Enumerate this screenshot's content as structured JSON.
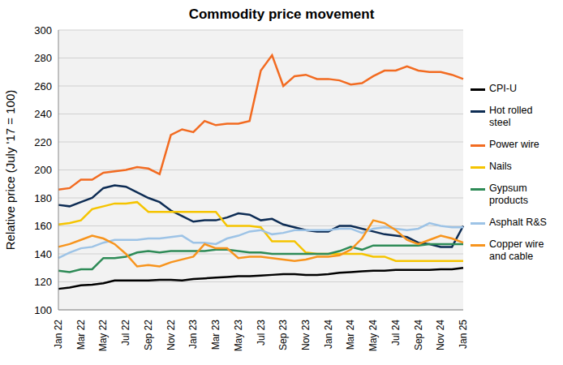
{
  "chart_data": {
    "type": "line",
    "title": "Commodity price movement",
    "y_label": "Relative price (July '17 = 100)",
    "categories": [
      "Jan 22",
      null,
      "Mar 22",
      null,
      "May 22",
      null,
      "Jul 22",
      null,
      "Sep 22",
      null,
      "Nov 22",
      null,
      "Jan 23",
      null,
      "Mar 23",
      null,
      "May 23",
      null,
      "Jul 23",
      null,
      "Sep 23",
      null,
      "Nov 23",
      null,
      "Jan 24",
      null,
      "Mar 24",
      null,
      "May 24",
      null,
      "Jul 24",
      null,
      "Sep 24",
      null,
      "Nov 24",
      null,
      "Jan 25"
    ],
    "ylim": [
      100,
      300
    ],
    "yticks": [
      100,
      120,
      140,
      160,
      180,
      200,
      220,
      240,
      260,
      280,
      300
    ],
    "grid": true,
    "legend": "right",
    "series": [
      {
        "name": "CPI-U",
        "color": "#000000",
        "values": [
          115,
          116,
          117.5,
          118,
          119,
          121,
          121,
          121,
          121,
          121.5,
          121.5,
          121,
          122,
          122.5,
          123,
          123.5,
          124,
          124,
          124.5,
          125,
          125.5,
          125.5,
          125,
          125,
          125.5,
          126.5,
          127,
          127.5,
          128,
          128,
          128.5,
          128.5,
          128.5,
          128.5,
          129,
          129,
          130
        ]
      },
      {
        "name": "Hot rolled steel",
        "color": "#0d2c54",
        "values": [
          175,
          174,
          177,
          180,
          187,
          189,
          188,
          184,
          180,
          177,
          171,
          167,
          163,
          164,
          164,
          166,
          169,
          168,
          164,
          165,
          161,
          159,
          157,
          156,
          156,
          160,
          160,
          158,
          156,
          154,
          153,
          152,
          148,
          147,
          145,
          145,
          160
        ]
      },
      {
        "name": "Power wire",
        "color": "#f26b21",
        "values": [
          186,
          187,
          193,
          193,
          198,
          199,
          200,
          202,
          201,
          197,
          225,
          229,
          227,
          235,
          232,
          233,
          233,
          235,
          271,
          282,
          260,
          267,
          268,
          265,
          265,
          264,
          261,
          262,
          267,
          271,
          271,
          274,
          271,
          270,
          270,
          268,
          265
        ]
      },
      {
        "name": "Nails",
        "color": "#f5c400",
        "values": [
          161,
          162,
          164,
          172,
          174,
          176,
          176,
          177,
          170,
          170,
          170,
          170,
          170,
          170,
          170,
          160,
          160,
          160,
          159,
          149,
          149,
          149,
          141,
          140,
          140,
          140,
          140,
          140,
          138,
          138,
          135,
          135,
          135,
          135,
          135,
          135,
          135
        ]
      },
      {
        "name": "Gypsum products",
        "color": "#2e8b57",
        "values": [
          128,
          127,
          129,
          129,
          137,
          137,
          138,
          141,
          142,
          141,
          142,
          142,
          142,
          142,
          143,
          143,
          142,
          141,
          141,
          140,
          140,
          140,
          140,
          140,
          140,
          142,
          145,
          143,
          146,
          146,
          146,
          146,
          146,
          147,
          147,
          147,
          147
        ]
      },
      {
        "name": "Asphalt R&S",
        "color": "#9dc3e6",
        "values": [
          137,
          141,
          144,
          145,
          148,
          150,
          150,
          150,
          151,
          151,
          152,
          153,
          148,
          148,
          147,
          151,
          153,
          156,
          157,
          154,
          155,
          157,
          157,
          157,
          157,
          158,
          158,
          155,
          158,
          159,
          158,
          157,
          158,
          162,
          160,
          159,
          159
        ]
      },
      {
        "name": "Copper wire and cable",
        "color": "#f7941d",
        "values": [
          145,
          147,
          150,
          153,
          151,
          147,
          140,
          131,
          132,
          131,
          134,
          136,
          138,
          147,
          144,
          144,
          137,
          138,
          138,
          137,
          136,
          135,
          136,
          138,
          138,
          139,
          143,
          151,
          164,
          162,
          157,
          150,
          147,
          150,
          153,
          151,
          148
        ]
      }
    ]
  }
}
